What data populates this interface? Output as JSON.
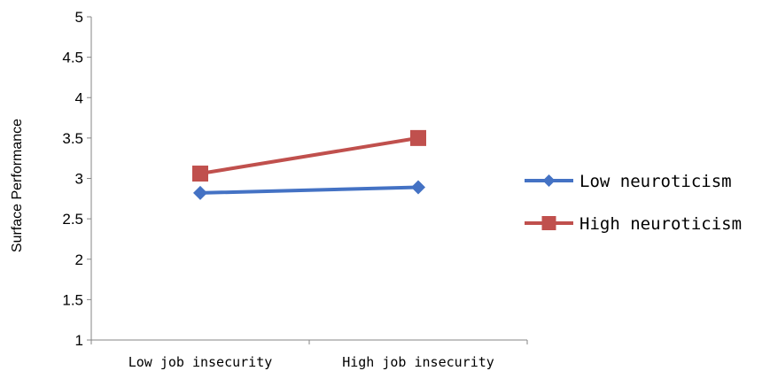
{
  "chart_data": {
    "type": "line",
    "title": "",
    "xlabel": "",
    "ylabel": "Surface Performance",
    "categories": [
      "Low job insecurity",
      "High job insecurity"
    ],
    "ylim": [
      1,
      5
    ],
    "yticks": [
      "1",
      "1.5",
      "2",
      "2.5",
      "3",
      "3.5",
      "4",
      "4.5",
      "5"
    ],
    "grid": false,
    "legend_position": "right",
    "series": [
      {
        "name": "Low neuroticism",
        "values": [
          2.82,
          2.89
        ],
        "color": "#4472C4",
        "marker": "diamond"
      },
      {
        "name": "High neuroticism",
        "values": [
          3.06,
          3.5
        ],
        "color": "#C0504D",
        "marker": "square"
      }
    ]
  }
}
